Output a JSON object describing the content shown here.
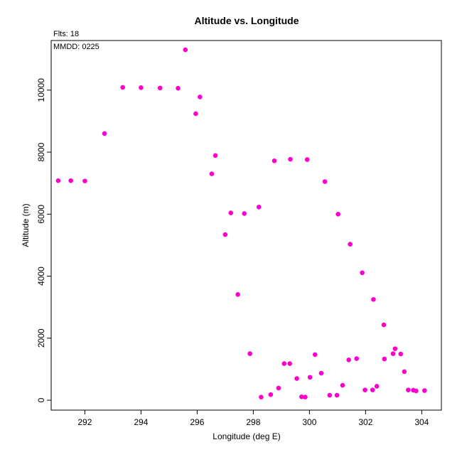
{
  "chart_data": {
    "type": "scatter",
    "title": "Altitude vs. Longitude",
    "annotations": [
      "Flts: 18",
      "MMDD: 0225"
    ],
    "xlabel": "Longitude (deg E)",
    "ylabel": "Altitude (m)",
    "xlim": [
      290.8,
      304.7
    ],
    "ylim": [
      -320,
      11600
    ],
    "xticks": [
      292,
      294,
      296,
      298,
      300,
      302,
      304
    ],
    "yticks": [
      0,
      2000,
      4000,
      6000,
      8000,
      10000
    ],
    "xtick_labels": [
      "292",
      "294",
      "296",
      "298",
      "300",
      "302",
      "304"
    ],
    "ytick_labels": [
      "0",
      "2000",
      "4000",
      "6000",
      "8000",
      "10000"
    ],
    "grid": false,
    "marker_color": "#ff00cc",
    "points": [
      [
        291.05,
        7080
      ],
      [
        291.5,
        7080
      ],
      [
        292.0,
        7070
      ],
      [
        292.7,
        8600
      ],
      [
        293.35,
        10090
      ],
      [
        294.0,
        10080
      ],
      [
        294.68,
        10070
      ],
      [
        295.32,
        10060
      ],
      [
        295.58,
        11300
      ],
      [
        295.95,
        9240
      ],
      [
        296.1,
        9780
      ],
      [
        296.52,
        7300
      ],
      [
        296.65,
        7890
      ],
      [
        297.0,
        5340
      ],
      [
        297.2,
        6040
      ],
      [
        297.45,
        3410
      ],
      [
        297.68,
        6020
      ],
      [
        297.88,
        1500
      ],
      [
        298.2,
        6230
      ],
      [
        298.28,
        100
      ],
      [
        298.62,
        180
      ],
      [
        298.75,
        7720
      ],
      [
        298.9,
        390
      ],
      [
        299.1,
        1180
      ],
      [
        299.3,
        1180
      ],
      [
        299.32,
        7770
      ],
      [
        299.55,
        700
      ],
      [
        299.72,
        110
      ],
      [
        299.85,
        100
      ],
      [
        299.92,
        7760
      ],
      [
        300.02,
        740
      ],
      [
        300.2,
        1470
      ],
      [
        300.42,
        870
      ],
      [
        300.55,
        7050
      ],
      [
        300.72,
        160
      ],
      [
        300.98,
        160
      ],
      [
        301.02,
        6000
      ],
      [
        301.18,
        480
      ],
      [
        301.4,
        1300
      ],
      [
        301.45,
        5030
      ],
      [
        301.68,
        1340
      ],
      [
        301.88,
        4110
      ],
      [
        301.98,
        330
      ],
      [
        302.25,
        330
      ],
      [
        302.28,
        3250
      ],
      [
        302.4,
        450
      ],
      [
        302.65,
        2430
      ],
      [
        302.67,
        1330
      ],
      [
        302.98,
        1500
      ],
      [
        303.05,
        1660
      ],
      [
        303.25,
        1490
      ],
      [
        303.38,
        920
      ],
      [
        303.52,
        330
      ],
      [
        303.7,
        320
      ],
      [
        303.8,
        300
      ],
      [
        304.1,
        310
      ]
    ]
  }
}
